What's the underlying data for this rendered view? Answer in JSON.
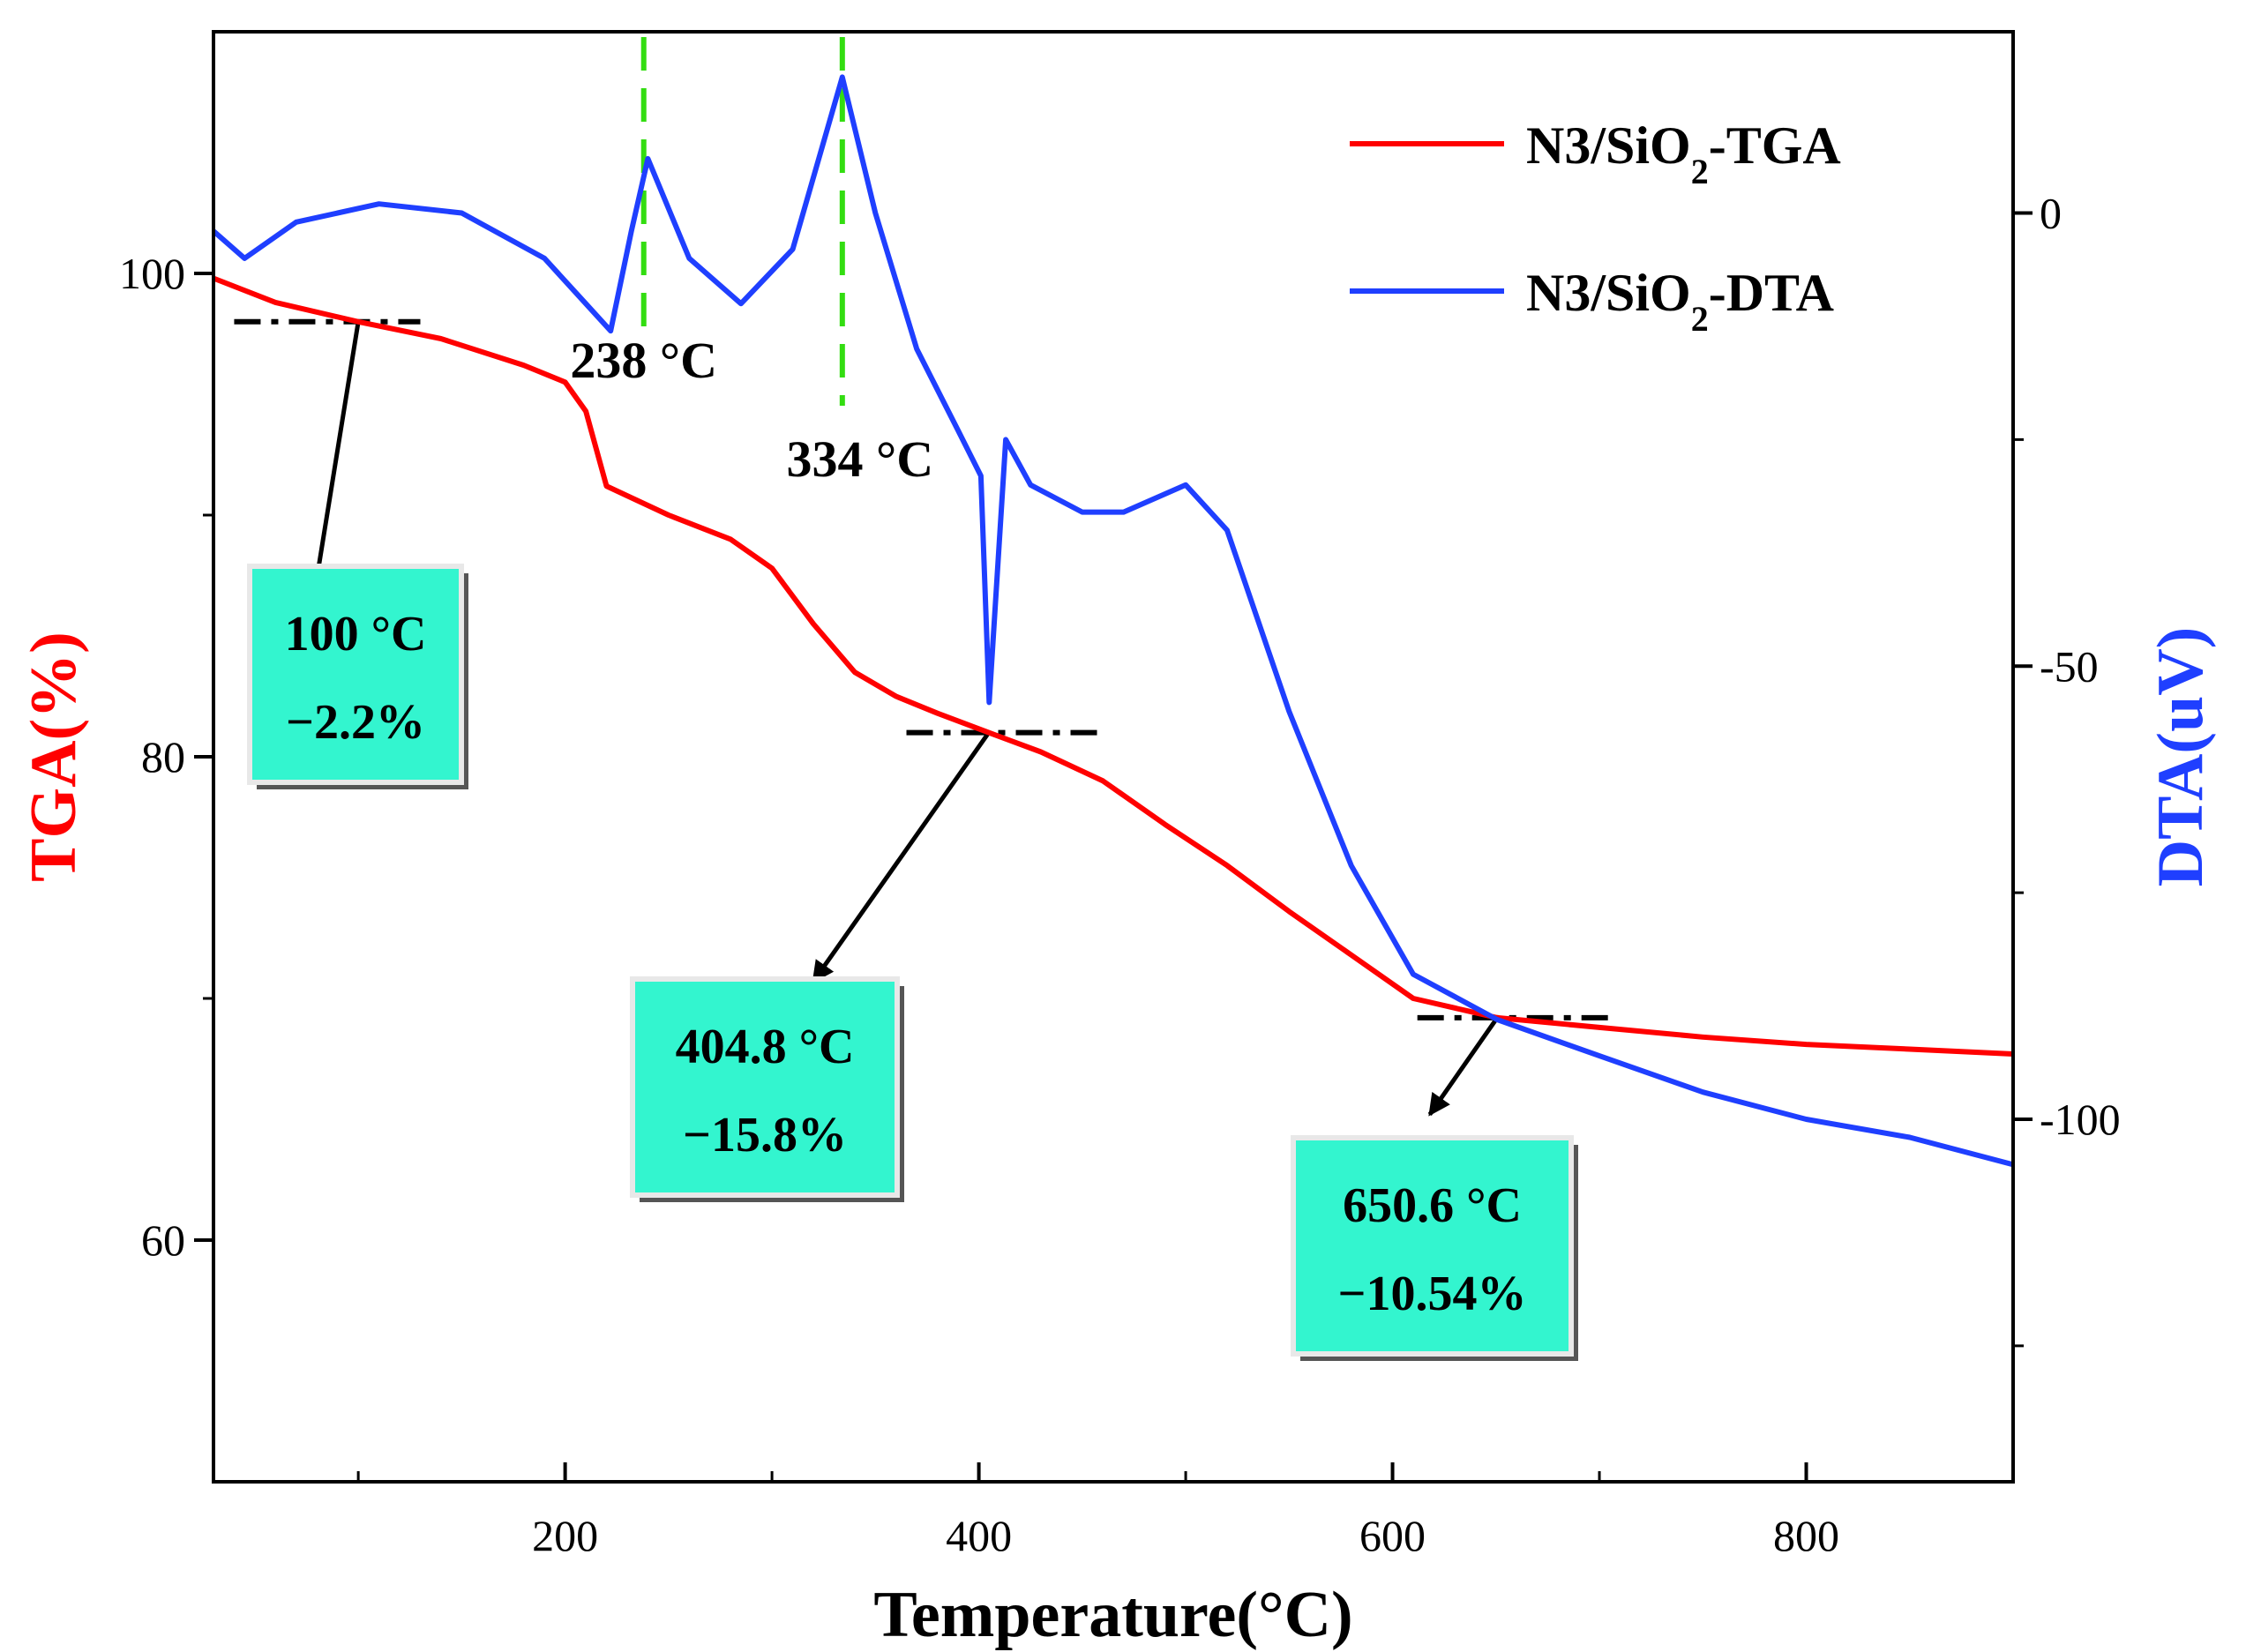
{
  "chart_data": {
    "type": "line",
    "xlabel": "Temperature(°C)",
    "ylabel_left": "TGA(%)",
    "ylabel_right": "DTA(uV)",
    "xlim": [
      30,
      900
    ],
    "ylim_left": [
      50,
      110
    ],
    "ylim_right": [
      -140,
      20
    ],
    "x_ticks": [
      200,
      400,
      600,
      800
    ],
    "y_left_ticks": [
      60,
      80,
      100
    ],
    "y_right_ticks": [
      0,
      -50,
      -100
    ],
    "x_tick_labels": [
      "200",
      "400",
      "600",
      "800"
    ],
    "y_left_tick_labels": [
      "60",
      "80",
      "100"
    ],
    "y_right_tick_labels": [
      "0",
      "-50",
      "-100"
    ],
    "colors": {
      "tga": "#ff0000",
      "dta": "#1f3fff",
      "peak_line": "#33dd11",
      "box_fill": "#33f5cf"
    },
    "legend": [
      {
        "name_main": "N3/SiO",
        "name_sub": "2",
        "name_tail": "-TGA",
        "color": "#ff0000"
      },
      {
        "name_main": "N3/SiO",
        "name_sub": "2",
        "name_tail": "-DTA",
        "color": "#1f3fff"
      }
    ],
    "series": [
      {
        "name": "N3/SiO2-TGA",
        "axis": "left",
        "x": [
          30,
          60,
          100,
          140,
          180,
          200,
          210,
          220,
          230,
          250,
          280,
          300,
          320,
          340,
          360,
          380,
          404.8,
          430,
          460,
          490,
          520,
          550,
          580,
          610,
          650.6,
          700,
          750,
          800,
          850,
          900
        ],
        "y": [
          99.8,
          98.8,
          98.0,
          97.3,
          96.2,
          95.5,
          94.3,
          91.2,
          90.8,
          90.0,
          89.0,
          87.8,
          85.5,
          83.5,
          82.5,
          81.8,
          81.0,
          80.2,
          79.0,
          77.2,
          75.5,
          73.6,
          71.8,
          70.0,
          69.2,
          68.8,
          68.4,
          68.1,
          67.9,
          67.7
        ]
      },
      {
        "name": "N3/SiO2-DTA",
        "axis": "right",
        "x": [
          30,
          45,
          70,
          110,
          150,
          190,
          210,
          222,
          232,
          240,
          260,
          285,
          310,
          334,
          350,
          370,
          390,
          401,
          405,
          413,
          425,
          450,
          470,
          500,
          520,
          550,
          580,
          610,
          650.6,
          700,
          750,
          800,
          850,
          900
        ],
        "y": [
          -2,
          -5,
          -1,
          1,
          0,
          -5,
          -10,
          -13,
          -2,
          6,
          -5,
          -10,
          -4,
          15,
          0,
          -15,
          -24,
          -29,
          -54,
          -25,
          -30,
          -33,
          -33,
          -30,
          -35,
          -55,
          -72,
          -84,
          -89,
          -93,
          -97,
          -100,
          -102,
          -105
        ]
      }
    ],
    "annotations": [
      {
        "x": 100,
        "y": 98.0,
        "temp_label": "100 °C",
        "loss_label": "−2.2%"
      },
      {
        "x": 404.8,
        "y": 81.0,
        "temp_label": "404.8 °C",
        "loss_label": "−15.8%"
      },
      {
        "x": 650.6,
        "y": 69.2,
        "temp_label": "650.6 °C",
        "loss_label": "−10.54%"
      }
    ],
    "peaks": [
      {
        "x": 238,
        "label": "238 °C"
      },
      {
        "x": 334,
        "label": "334 °C"
      }
    ]
  }
}
